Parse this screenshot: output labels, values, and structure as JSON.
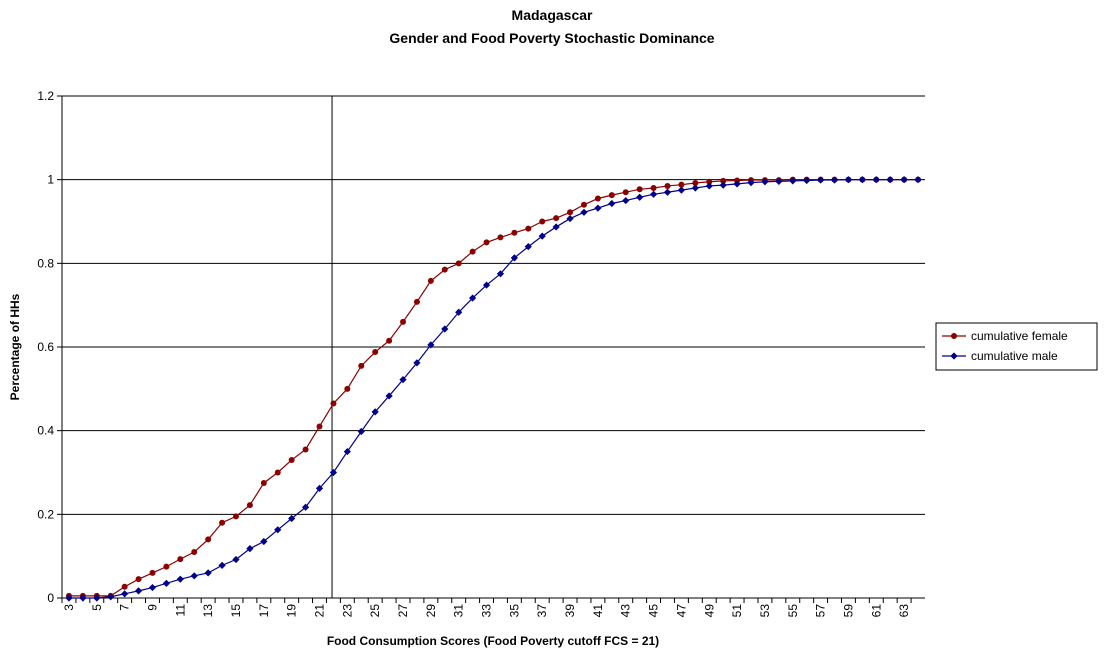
{
  "chart_data": {
    "type": "line",
    "title": "Madagascar",
    "subtitle": "Gender and Food Poverty Stochastic Dominance",
    "x_label": "Food Consumption Scores (Food Poverty cutoff FCS = 21)",
    "y_label": "Percentage of HHs",
    "categories": [
      "3",
      null,
      "5",
      null,
      "7",
      null,
      "9",
      null,
      "11",
      null,
      "13",
      null,
      "15",
      null,
      "17",
      null,
      "19",
      null,
      "21",
      null,
      "23",
      null,
      "25",
      null,
      "27",
      null,
      "29",
      null,
      "31",
      null,
      "33",
      null,
      "35",
      null,
      "37",
      null,
      "39",
      null,
      "41",
      null,
      "43",
      null,
      "45",
      null,
      "47",
      null,
      "49",
      null,
      "51",
      null,
      "53",
      null,
      "55",
      null,
      "57",
      null,
      "59",
      null,
      "61",
      null,
      "63",
      null
    ],
    "series": [
      {
        "name": "cumulative female",
        "color": "#8b0000",
        "marker": "circle",
        "values": [
          0.005,
          0.005,
          0.005,
          0.005,
          0.027,
          0.045,
          0.06,
          0.075,
          0.093,
          0.11,
          0.14,
          0.18,
          0.195,
          0.222,
          0.275,
          0.3,
          0.33,
          0.355,
          0.41,
          0.465,
          0.5,
          0.555,
          0.588,
          0.615,
          0.66,
          0.708,
          0.758,
          0.785,
          0.8,
          0.828,
          0.85,
          0.862,
          0.873,
          0.883,
          0.9,
          0.908,
          0.922,
          0.94,
          0.955,
          0.963,
          0.97,
          0.977,
          0.98,
          0.985,
          0.988,
          0.992,
          0.995,
          0.997,
          0.998,
          0.999,
          0.999,
          0.999,
          1,
          1,
          1,
          1,
          1,
          1,
          1,
          1,
          1,
          1
        ]
      },
      {
        "name": "cumulative male",
        "color": "#00008b",
        "marker": "diamond",
        "values": [
          0,
          0,
          0,
          0.003,
          0.01,
          0.017,
          0.025,
          0.035,
          0.045,
          0.053,
          0.06,
          0.078,
          0.092,
          0.118,
          0.135,
          0.163,
          0.19,
          0.217,
          0.262,
          0.3,
          0.35,
          0.398,
          0.445,
          0.483,
          0.522,
          0.562,
          0.605,
          0.643,
          0.683,
          0.717,
          0.748,
          0.775,
          0.813,
          0.84,
          0.865,
          0.887,
          0.907,
          0.922,
          0.932,
          0.943,
          0.95,
          0.958,
          0.965,
          0.97,
          0.975,
          0.98,
          0.985,
          0.987,
          0.99,
          0.993,
          0.995,
          0.996,
          0.997,
          0.998,
          0.999,
          0.999,
          1,
          1,
          1,
          1,
          1,
          1
        ]
      }
    ],
    "ylim": [
      0,
      1.2
    ],
    "yticks": [
      0,
      0.2,
      0.4,
      0.6,
      0.8,
      1,
      1.2
    ],
    "grid": true,
    "legend": "right"
  }
}
